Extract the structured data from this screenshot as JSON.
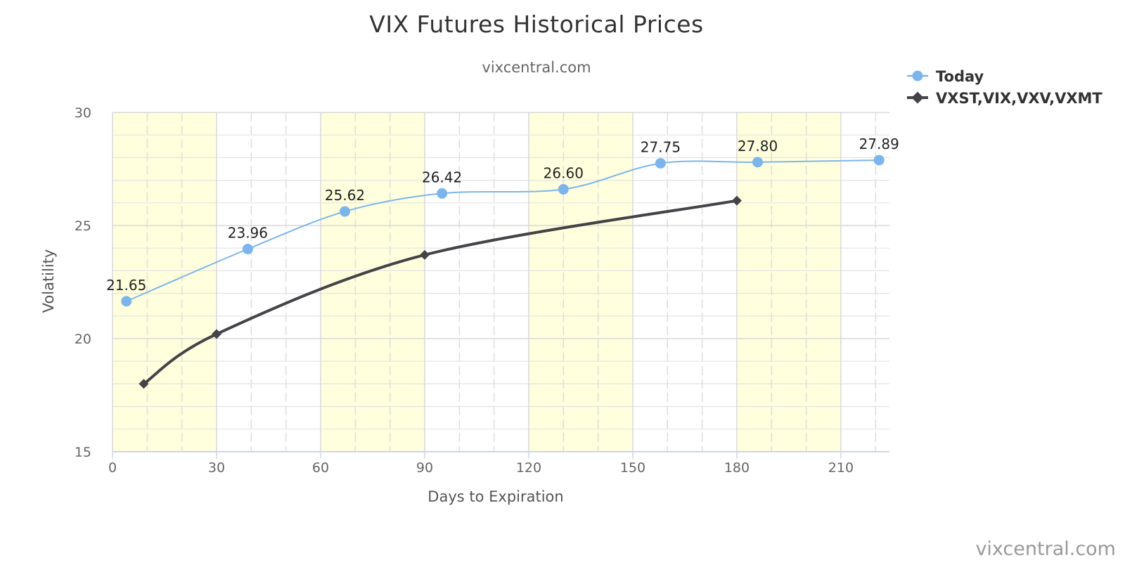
{
  "chart_data": {
    "type": "line",
    "title": "VIX Futures Historical Prices",
    "subtitle": "vixcentral.com",
    "xlabel": "Days to Expiration",
    "ylabel": "Volatility",
    "xlim": [
      0,
      224
    ],
    "ylim": [
      15,
      30
    ],
    "x_ticks": [
      0,
      30,
      60,
      90,
      120,
      150,
      180,
      210
    ],
    "y_ticks": [
      15,
      20,
      25,
      30
    ],
    "grid": true,
    "shaded_bands": [
      [
        0,
        30
      ],
      [
        60,
        90
      ],
      [
        120,
        150
      ],
      [
        180,
        210
      ]
    ],
    "legend_position": "top-right",
    "credits": "vixcentral.com",
    "series": [
      {
        "name": "Today",
        "color": "#7cb5ec",
        "marker": "circle",
        "show_labels": true,
        "points": [
          {
            "x": 4,
            "y": 21.65,
            "label": "21.65"
          },
          {
            "x": 39,
            "y": 23.96,
            "label": "23.96"
          },
          {
            "x": 67,
            "y": 25.62,
            "label": "25.62"
          },
          {
            "x": 95,
            "y": 26.42,
            "label": "26.42"
          },
          {
            "x": 130,
            "y": 26.6,
            "label": "26.60"
          },
          {
            "x": 158,
            "y": 27.75,
            "label": "27.75"
          },
          {
            "x": 186,
            "y": 27.8,
            "label": "27.80"
          },
          {
            "x": 221,
            "y": 27.89,
            "label": "27.89"
          }
        ]
      },
      {
        "name": "VXST,VIX,VXV,VXMT",
        "color": "#434348",
        "marker": "diamond",
        "show_labels": false,
        "points": [
          {
            "x": 9,
            "y": 18.0
          },
          {
            "x": 30,
            "y": 20.2
          },
          {
            "x": 90,
            "y": 23.7
          },
          {
            "x": 180,
            "y": 26.1
          }
        ]
      }
    ]
  }
}
